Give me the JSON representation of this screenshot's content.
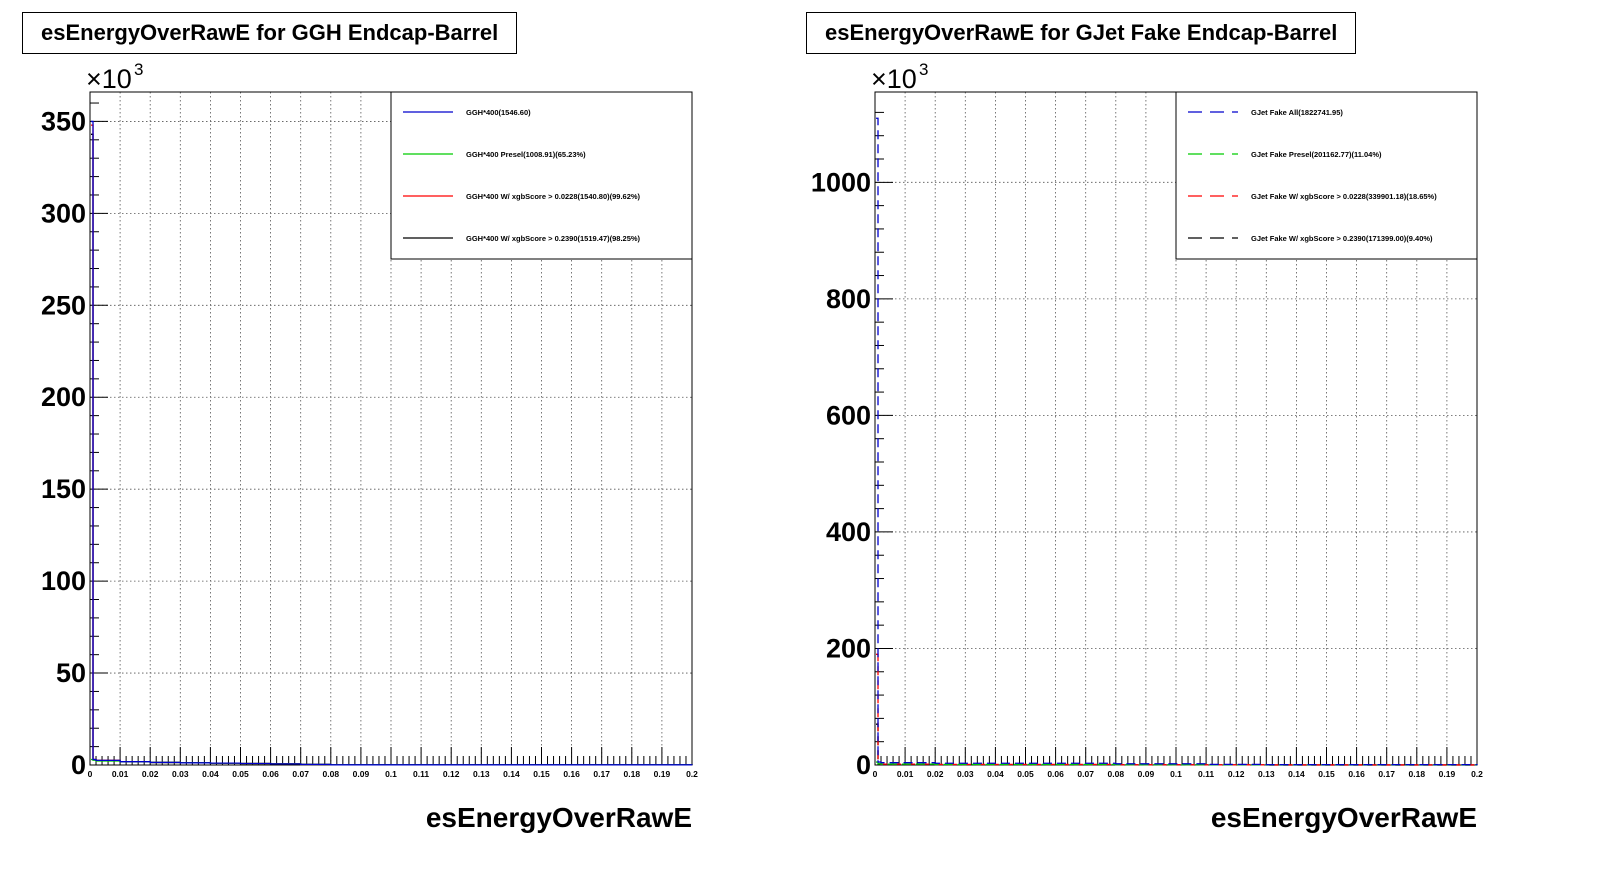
{
  "chart_data": [
    {
      "type": "line",
      "title": "esEnergyOverRawE for GGH Endcap-Barrel",
      "xlabel": "esEnergyOverRawE",
      "ylabel": "",
      "y_multiplier_label": "×10",
      "y_multiplier_exp": "3",
      "xlim": [
        0,
        0.2
      ],
      "ylim": [
        0,
        366
      ],
      "xticks": [
        0,
        0.01,
        0.02,
        0.03,
        0.04,
        0.05,
        0.06,
        0.07,
        0.08,
        0.09,
        0.1,
        0.11,
        0.12,
        0.13,
        0.14,
        0.15,
        0.16,
        0.17,
        0.18,
        0.19,
        0.2
      ],
      "xtick_labels": [
        "0",
        "0.01",
        "0.02",
        "0.03",
        "0.04",
        "0.05",
        "0.06",
        "0.07",
        "0.08",
        "0.09",
        "0.1",
        "0.11",
        "0.12",
        "0.13",
        "0.14",
        "0.15",
        "0.16",
        "0.17",
        "0.18",
        "0.19",
        "0.2"
      ],
      "yticks": [
        0,
        50,
        100,
        150,
        200,
        250,
        300,
        350
      ],
      "ytick_labels": [
        "0",
        "50",
        "100",
        "150",
        "200",
        "250",
        "300",
        "350"
      ],
      "grid": true,
      "legend_position": "top-right",
      "dashed": false,
      "series": [
        {
          "name": "GGH*400(1546.60)",
          "color": "#0000cc",
          "x": [
            0,
            0.001,
            0.002,
            0.01,
            0.02,
            0.03,
            0.04,
            0.05,
            0.06,
            0.07,
            0.08,
            0.2
          ],
          "y": [
            350,
            3,
            2.5,
            1.8,
            1.4,
            1.2,
            1.0,
            0.8,
            0.6,
            0.3,
            0.1,
            0
          ]
        },
        {
          "name": "GGH*400 Presel(1008.91)(65.23%)",
          "color": "#00cc00",
          "x": [
            0,
            0.001,
            0.002,
            0.01,
            0.02,
            0.03,
            0.04,
            0.05,
            0.06,
            0.07,
            0.08,
            0.2
          ],
          "y": [
            3,
            2.6,
            2.2,
            1.8,
            1.4,
            1.2,
            1.0,
            0.8,
            0.6,
            0.3,
            0.1,
            0
          ]
        },
        {
          "name": "GGH*400 W/ xgbScore > 0.0228(1540.80)(99.62%)",
          "color": "#ff0000",
          "x": [
            0,
            0.001,
            0.002,
            0.01,
            0.02,
            0.03,
            0.04,
            0.05,
            0.06,
            0.07,
            0.08,
            0.2
          ],
          "y": [
            348,
            3,
            2.5,
            1.8,
            1.4,
            1.2,
            1.0,
            0.8,
            0.6,
            0.3,
            0.1,
            0
          ]
        },
        {
          "name": "GGH*400 W/ xgbScore > 0.2390(1519.47)(98.25%)",
          "color": "#000000",
          "x": [
            0,
            0.001,
            0.002,
            0.01,
            0.02,
            0.03,
            0.04,
            0.05,
            0.06,
            0.07,
            0.08,
            0.2
          ],
          "y": [
            343,
            3,
            2.5,
            1.8,
            1.4,
            1.2,
            1.0,
            0.8,
            0.6,
            0.3,
            0.1,
            0
          ]
        }
      ]
    },
    {
      "type": "line",
      "title": "esEnergyOverRawE for GJet Fake Endcap-Barrel",
      "xlabel": "esEnergyOverRawE",
      "ylabel": "",
      "y_multiplier_label": "×10",
      "y_multiplier_exp": "3",
      "xlim": [
        0,
        0.2
      ],
      "ylim": [
        0,
        1155
      ],
      "xticks": [
        0,
        0.01,
        0.02,
        0.03,
        0.04,
        0.05,
        0.06,
        0.07,
        0.08,
        0.09,
        0.1,
        0.11,
        0.12,
        0.13,
        0.14,
        0.15,
        0.16,
        0.17,
        0.18,
        0.19,
        0.2
      ],
      "xtick_labels": [
        "0",
        "0.01",
        "0.02",
        "0.03",
        "0.04",
        "0.05",
        "0.06",
        "0.07",
        "0.08",
        "0.09",
        "0.1",
        "0.11",
        "0.12",
        "0.13",
        "0.14",
        "0.15",
        "0.16",
        "0.17",
        "0.18",
        "0.19",
        "0.2"
      ],
      "yticks": [
        0,
        200,
        400,
        600,
        800,
        1000
      ],
      "ytick_labels": [
        "0",
        "200",
        "400",
        "600",
        "800",
        "1000"
      ],
      "grid": true,
      "legend_position": "top-right",
      "dashed": true,
      "series": [
        {
          "name": "GJet Fake All(1822741.95)",
          "color": "#0000cc",
          "x": [
            0,
            0.001,
            0.002,
            0.02,
            0.05,
            0.08,
            0.11,
            0.13,
            0.2
          ],
          "y": [
            1110,
            5,
            4,
            3,
            3,
            2,
            1,
            0.5,
            0
          ]
        },
        {
          "name": "GJet Fake Presel(201162.77)(11.04%)",
          "color": "#00cc00",
          "x": [
            0,
            0.001,
            0.002,
            0.02,
            0.05,
            0.08,
            0.11,
            0.13,
            0.2
          ],
          "y": [
            5,
            2,
            1.5,
            1,
            1,
            0.5,
            0.3,
            0.1,
            0
          ]
        },
        {
          "name": "GJet Fake W/ xgbScore > 0.0228(339901.18)(18.65%)",
          "color": "#ff0000",
          "x": [
            0,
            0.001,
            0.002,
            0.02,
            0.05,
            0.08,
            0.11,
            0.13,
            0.2
          ],
          "y": [
            190,
            2,
            1.5,
            1,
            1,
            0.5,
            0.3,
            0.1,
            0
          ]
        },
        {
          "name": "GJet Fake W/ xgbScore > 0.2390(171399.00)(9.40%)",
          "color": "#000000",
          "x": [
            0,
            0.001,
            0.002,
            0.02,
            0.05,
            0.08,
            0.11,
            0.13,
            0.2
          ],
          "y": [
            70,
            1,
            0.8,
            0.5,
            0.5,
            0.3,
            0.2,
            0.1,
            0
          ]
        }
      ]
    }
  ]
}
